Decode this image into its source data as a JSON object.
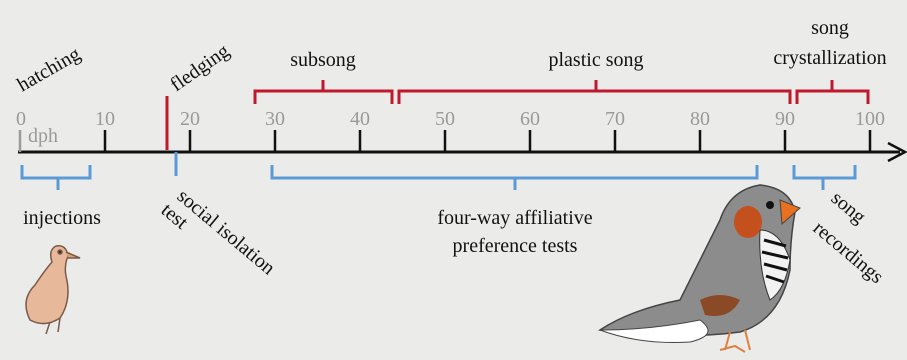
{
  "timeline": {
    "unit": "dph",
    "ticks": [
      0,
      10,
      20,
      30,
      40,
      50,
      60,
      70,
      80,
      90,
      100
    ]
  },
  "labels": {
    "hatching": "hatching",
    "fledging": "fledging",
    "subsong": "subsong",
    "plastic_song": "plastic song",
    "crystallization": [
      "song",
      "crystallization"
    ],
    "injections": "injections",
    "social_isolation": [
      "social isolation",
      "test"
    ],
    "preference_tests": [
      "four-way affiliative",
      "preference tests"
    ],
    "recordings": [
      "song",
      "recordings"
    ]
  }
}
